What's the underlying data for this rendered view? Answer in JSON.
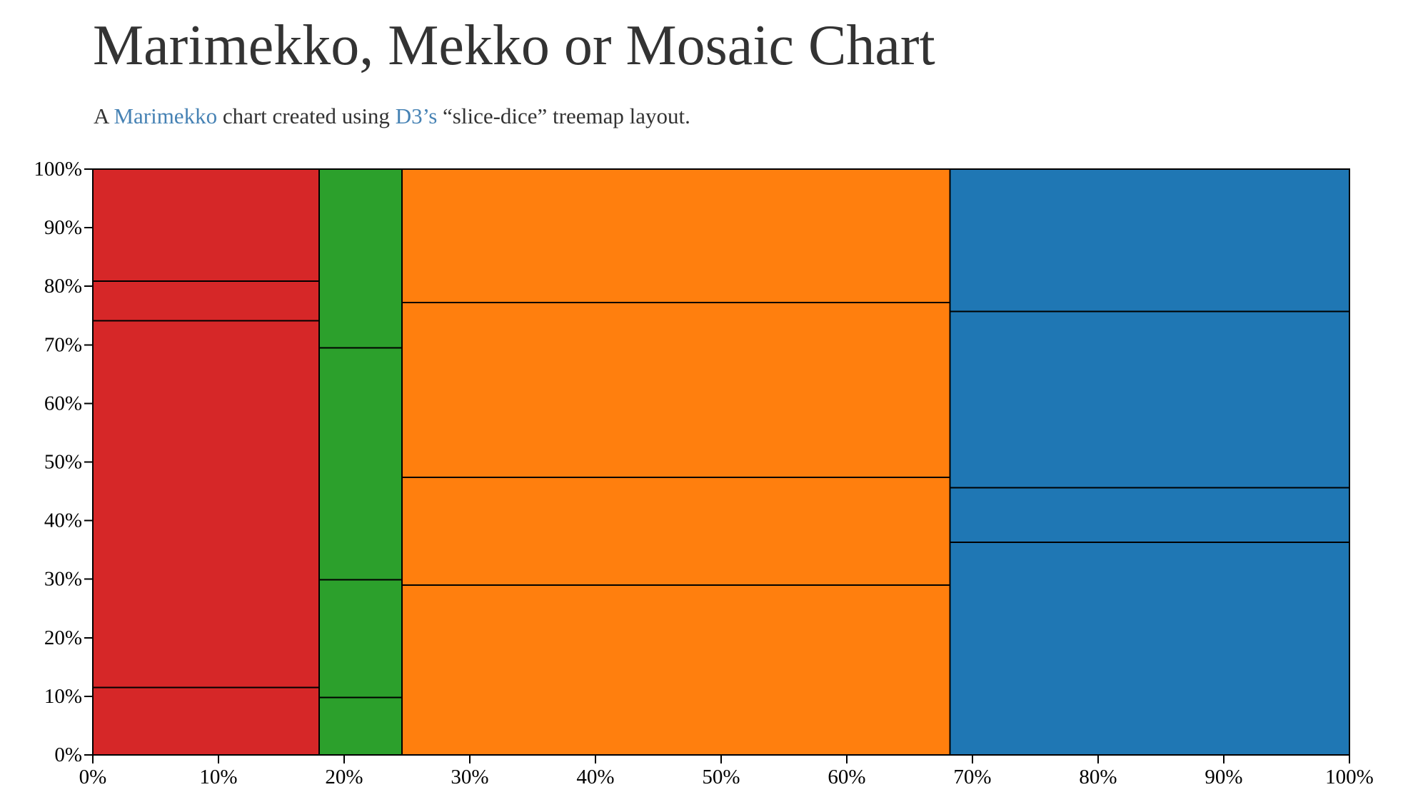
{
  "page": {
    "title": "Marimekko, Mekko or Mosaic Chart",
    "subtitle": {
      "prefix": "A ",
      "link1": "Marimekko",
      "middle": " chart created using ",
      "link2": "D3’s",
      "suffix": " “slice-dice” treemap layout."
    }
  },
  "chart_data": {
    "type": "mosaic",
    "title": "",
    "xlabel": "",
    "ylabel": "",
    "xlim": [
      0,
      100
    ],
    "ylim": [
      0,
      100
    ],
    "x_ticks": [
      "0%",
      "10%",
      "20%",
      "30%",
      "40%",
      "50%",
      "60%",
      "70%",
      "80%",
      "90%",
      "100%"
    ],
    "y_ticks": [
      "0%",
      "10%",
      "20%",
      "30%",
      "40%",
      "50%",
      "60%",
      "70%",
      "80%",
      "90%",
      "100%"
    ],
    "columns": [
      {
        "color": "#d62728",
        "x0": 0,
        "x1": 18,
        "segments": [
          11.5,
          62.6,
          6.8,
          19.1
        ]
      },
      {
        "color": "#2ca02c",
        "x0": 18,
        "x1": 24.6,
        "segments": [
          9.8,
          20.1,
          39.6,
          30.5
        ]
      },
      {
        "color": "#ff7f0e",
        "x0": 24.6,
        "x1": 68.2,
        "segments": [
          29.0,
          18.4,
          29.8,
          22.8
        ]
      },
      {
        "color": "#1f77b4",
        "x0": 68.2,
        "x1": 100,
        "segments": [
          36.3,
          9.3,
          30.1,
          24.3
        ]
      }
    ],
    "grid": false,
    "legend": "none"
  }
}
